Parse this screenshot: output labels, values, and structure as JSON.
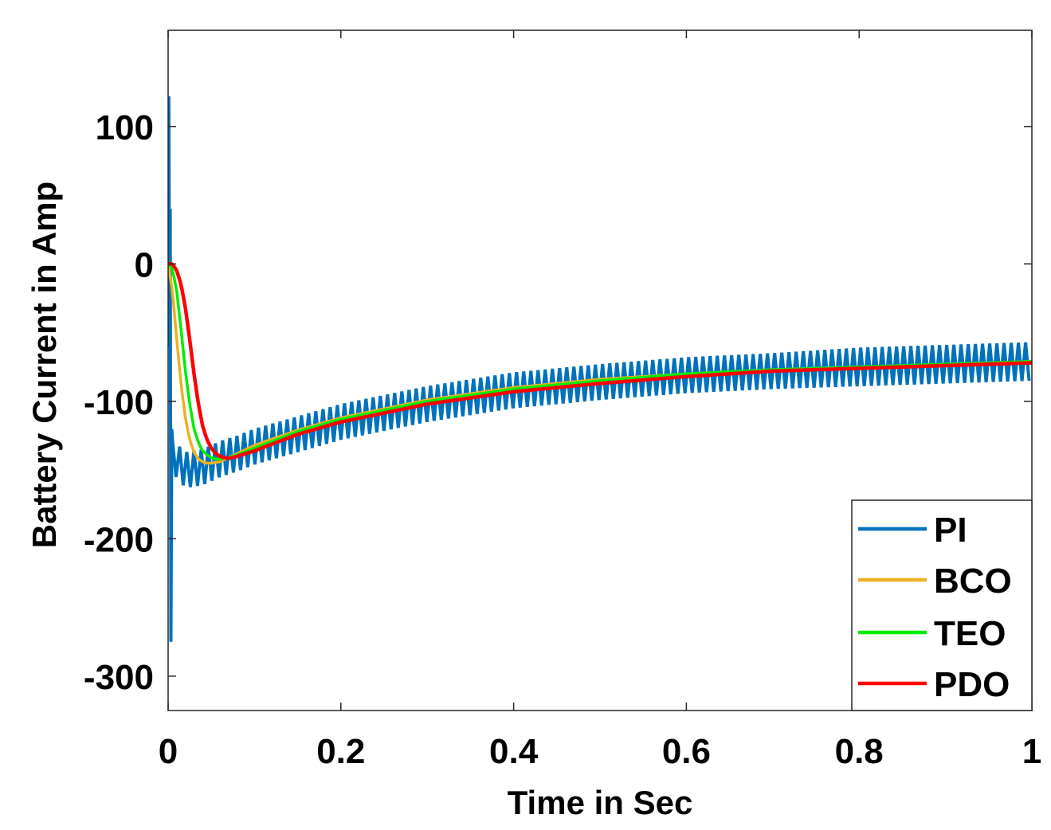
{
  "chart_data": {
    "type": "line",
    "title": "",
    "xlabel": "Time in Sec",
    "ylabel": "Battery Current in Amp",
    "xlim": [
      0,
      1
    ],
    "ylim": [
      -325,
      170
    ],
    "x_ticks": [
      0,
      0.2,
      0.4,
      0.6,
      0.8,
      1
    ],
    "x_tick_labels": [
      "0",
      "0.2",
      "0.4",
      "0.6",
      "0.8",
      "1"
    ],
    "y_ticks": [
      100,
      0,
      -100,
      -200,
      -300
    ],
    "y_tick_labels": [
      "100",
      "0",
      "-100",
      "-200",
      "-300"
    ],
    "grid": false,
    "legend_position": "bottom-right",
    "series": [
      {
        "name": "PI",
        "color": "#0072BD",
        "description": "oscillating signal with initial spike",
        "initial_spike": {
          "max": 122,
          "min": -275
        },
        "x": [
          0.005,
          0.02,
          0.04,
          0.06,
          0.08,
          0.1,
          0.15,
          0.2,
          0.3,
          0.4,
          0.5,
          0.6,
          0.7,
          0.8,
          0.9,
          1.0
        ],
        "mean": [
          -140,
          -150,
          -148,
          -142,
          -138,
          -133,
          -124,
          -115,
          -102,
          -92,
          -86,
          -81,
          -78,
          -75,
          -73,
          -71
        ],
        "ripple_amplitude": [
          12,
          13,
          13,
          13,
          13,
          13,
          13,
          13,
          13,
          13,
          13,
          13,
          13,
          14,
          14,
          14
        ],
        "ripple_period": 0.0083
      },
      {
        "name": "BCO",
        "color": "#EDB120",
        "x": [
          0,
          0.005,
          0.01,
          0.015,
          0.02,
          0.025,
          0.03,
          0.035,
          0.04,
          0.045,
          0.05,
          0.06,
          0.07,
          0.08,
          0.1,
          0.15,
          0.2,
          0.3,
          0.4,
          0.5,
          0.6,
          0.7,
          0.8,
          0.9,
          1.0
        ],
        "y": [
          0,
          -20,
          -55,
          -88,
          -112,
          -128,
          -137,
          -142,
          -144,
          -145,
          -145,
          -144,
          -141,
          -138,
          -132,
          -121,
          -112,
          -99,
          -90,
          -84,
          -80,
          -77,
          -75,
          -73,
          -71
        ]
      },
      {
        "name": "TEO",
        "color": "#00EE00",
        "x": [
          0,
          0.005,
          0.01,
          0.015,
          0.02,
          0.025,
          0.03,
          0.035,
          0.04,
          0.045,
          0.05,
          0.055,
          0.06,
          0.07,
          0.08,
          0.1,
          0.15,
          0.2,
          0.3,
          0.4,
          0.5,
          0.6,
          0.7,
          0.8,
          0.9,
          1.0
        ],
        "y": [
          0,
          -4,
          -20,
          -48,
          -78,
          -102,
          -120,
          -130,
          -136,
          -139,
          -141,
          -142,
          -142,
          -141,
          -139,
          -134,
          -122,
          -113,
          -100,
          -91,
          -85,
          -80,
          -77,
          -75,
          -73,
          -71
        ]
      },
      {
        "name": "PDO",
        "color": "#FF0000",
        "x": [
          0,
          0.005,
          0.01,
          0.015,
          0.02,
          0.025,
          0.03,
          0.035,
          0.04,
          0.045,
          0.05,
          0.055,
          0.06,
          0.065,
          0.07,
          0.075,
          0.08,
          0.1,
          0.15,
          0.2,
          0.3,
          0.4,
          0.5,
          0.6,
          0.7,
          0.8,
          0.9,
          1.0
        ],
        "y": [
          0,
          0,
          -5,
          -15,
          -32,
          -55,
          -80,
          -102,
          -118,
          -128,
          -134,
          -138,
          -140,
          -141,
          -141.5,
          -141,
          -140,
          -136,
          -124,
          -115,
          -102,
          -93,
          -87,
          -82,
          -78,
          -76,
          -74,
          -72
        ]
      }
    ]
  }
}
